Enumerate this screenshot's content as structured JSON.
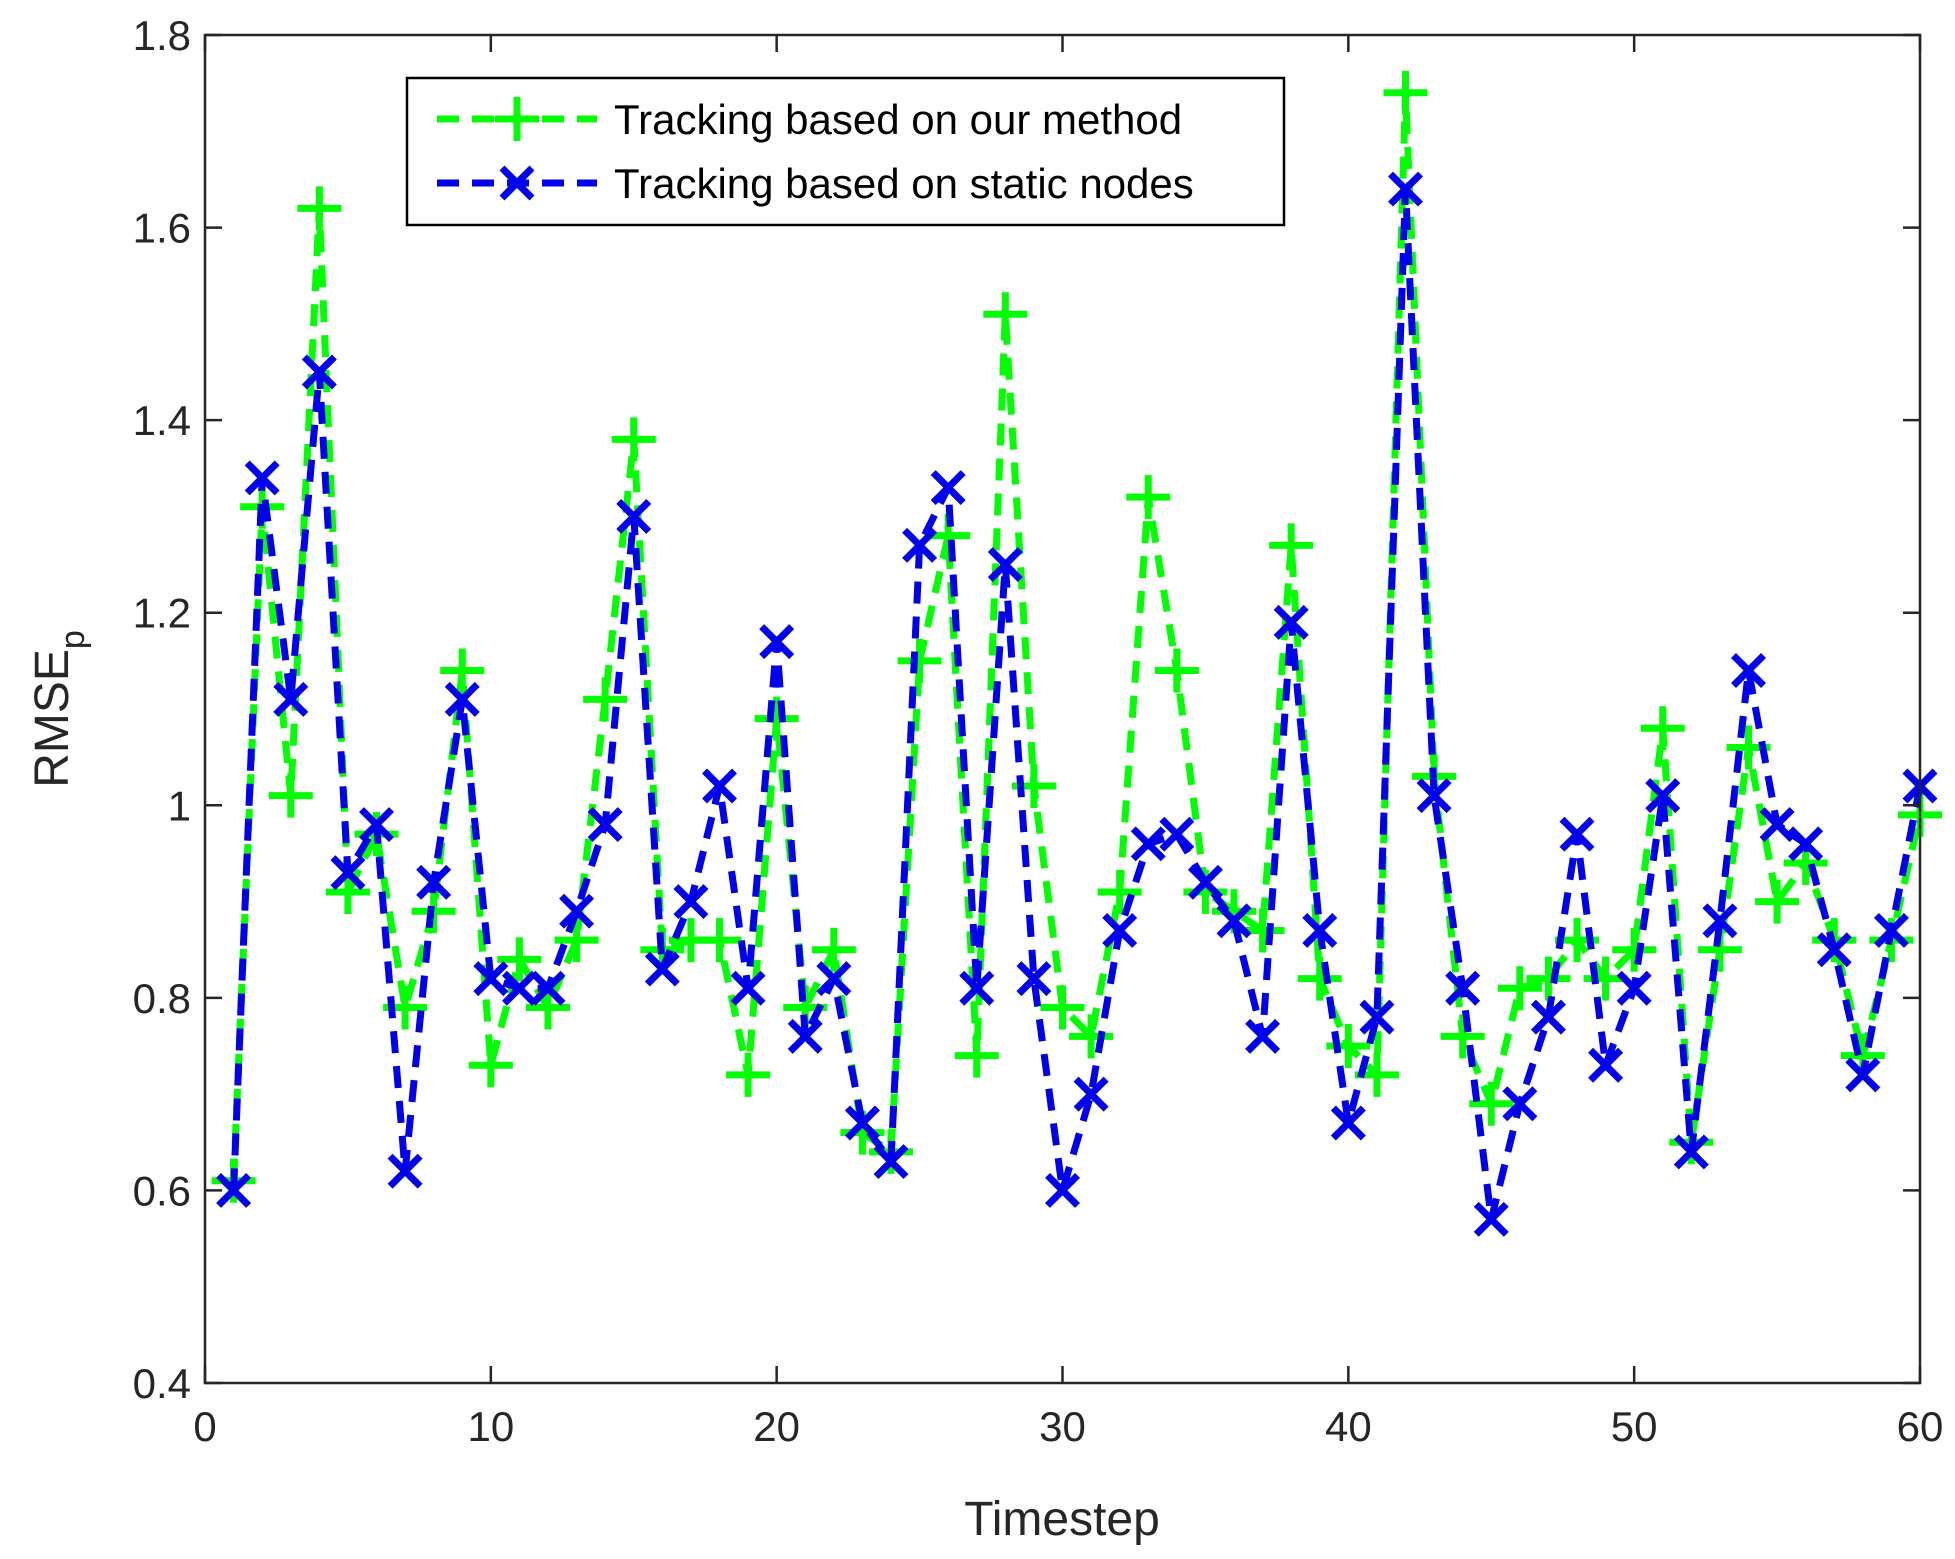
{
  "chart_data": {
    "type": "line",
    "title": "",
    "xlabel": "Timestep",
    "ylabel": "RMSE",
    "ylabel_subscript": "p",
    "xlim": [
      0,
      60
    ],
    "ylim": [
      0.4,
      1.8
    ],
    "xticks": [
      0,
      10,
      20,
      30,
      40,
      50,
      60
    ],
    "yticks": [
      0.4,
      0.6,
      0.8,
      1.0,
      1.2,
      1.4,
      1.6,
      1.8
    ],
    "xtick_labels": [
      "0",
      "10",
      "20",
      "30",
      "40",
      "50",
      "60"
    ],
    "ytick_labels": [
      "0.4",
      "0.6",
      "0.8",
      "1",
      "1.2",
      "1.4",
      "1.6",
      "1.8"
    ],
    "grid": false,
    "legend_position": "top-center",
    "x": [
      1,
      2,
      3,
      4,
      5,
      6,
      7,
      8,
      9,
      10,
      11,
      12,
      13,
      14,
      15,
      16,
      17,
      18,
      19,
      20,
      21,
      22,
      23,
      24,
      25,
      26,
      27,
      28,
      29,
      30,
      31,
      32,
      33,
      34,
      35,
      36,
      37,
      38,
      39,
      40,
      41,
      42,
      43,
      44,
      45,
      46,
      47,
      48,
      49,
      50,
      51,
      52,
      53,
      54,
      55,
      56,
      57,
      58,
      59,
      60
    ],
    "series": [
      {
        "name": "Tracking based on our method",
        "color": "#00ff00",
        "marker": "plus",
        "line_style": "dashed",
        "values": [
          0.61,
          1.31,
          1.01,
          1.62,
          0.91,
          0.97,
          0.79,
          0.89,
          1.14,
          0.73,
          0.84,
          0.79,
          0.86,
          1.11,
          1.38,
          0.85,
          0.86,
          0.86,
          0.72,
          1.09,
          0.79,
          0.85,
          0.66,
          0.64,
          1.15,
          1.28,
          0.74,
          1.51,
          1.02,
          0.79,
          0.76,
          0.91,
          1.32,
          1.14,
          0.91,
          0.89,
          0.87,
          1.27,
          0.82,
          0.75,
          0.72,
          1.74,
          1.03,
          0.76,
          0.69,
          0.81,
          0.82,
          0.86,
          0.82,
          0.85,
          1.08,
          0.65,
          0.85,
          1.06,
          0.9,
          0.94,
          0.86,
          0.74,
          0.86,
          0.99
        ]
      },
      {
        "name": "Tracking based on static nodes",
        "color": "#0000ee",
        "marker": "x",
        "line_style": "dashed",
        "values": [
          0.6,
          1.34,
          1.11,
          1.45,
          0.93,
          0.98,
          0.62,
          0.92,
          1.11,
          0.82,
          0.81,
          0.81,
          0.89,
          0.98,
          1.3,
          0.83,
          0.9,
          1.02,
          0.81,
          1.17,
          0.76,
          0.82,
          0.67,
          0.63,
          1.27,
          1.33,
          0.81,
          1.25,
          0.82,
          0.6,
          0.7,
          0.87,
          0.96,
          0.97,
          0.92,
          0.88,
          0.76,
          1.19,
          0.87,
          0.67,
          0.78,
          1.64,
          1.01,
          0.81,
          0.57,
          0.69,
          0.78,
          0.97,
          0.73,
          0.81,
          1.01,
          0.64,
          0.88,
          1.14,
          0.98,
          0.96,
          0.85,
          0.72,
          0.87,
          1.02
        ]
      }
    ]
  }
}
